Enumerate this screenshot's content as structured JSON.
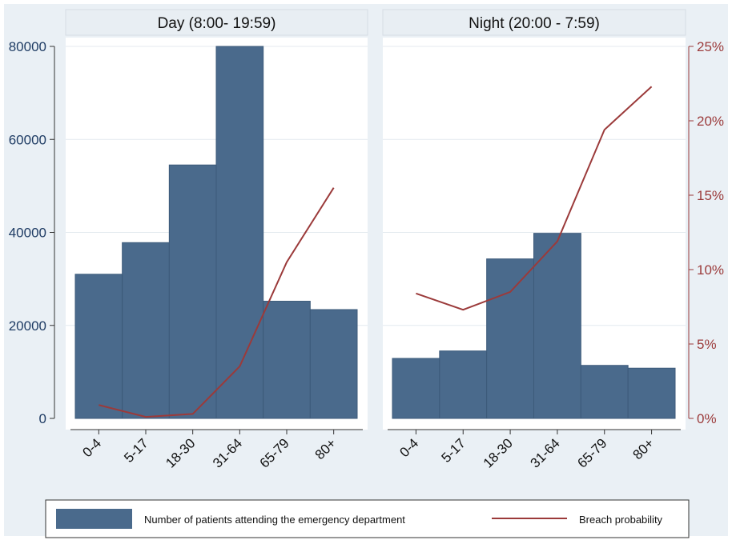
{
  "chart_data": {
    "type": "bar",
    "title": "",
    "categories": [
      "0-4",
      "5-17",
      "18-30",
      "31-64",
      "65-79",
      "80+"
    ],
    "panels": [
      {
        "title": "Day (8:00- 19:59)",
        "patients": [
          31000,
          37800,
          54500,
          80000,
          25200,
          23400
        ],
        "breach_probability": [
          0.009,
          0.001,
          0.003,
          0.035,
          0.105,
          0.155
        ]
      },
      {
        "title": "Night (20:00 - 7:59)",
        "patients": [
          12900,
          14500,
          34300,
          39800,
          11400,
          10800
        ],
        "breach_probability": [
          0.084,
          0.073,
          0.085,
          0.119,
          0.194,
          0.223
        ]
      }
    ],
    "left_axis": {
      "ticks": [
        0,
        20000,
        40000,
        60000,
        80000
      ],
      "tick_labels": [
        "0",
        "20000",
        "40000",
        "60000",
        "80000"
      ],
      "ylim": [
        0,
        80000
      ]
    },
    "right_axis": {
      "ticks": [
        0,
        0.05,
        0.1,
        0.15,
        0.2,
        0.25
      ],
      "tick_labels": [
        "0%",
        "5%",
        "10%",
        "15%",
        "20%",
        "25%"
      ],
      "ylim": [
        0,
        0.25
      ]
    },
    "legend": {
      "bar_label": "Number of patients attending the emergency department",
      "line_label": "Breach probability",
      "position": "bottom"
    },
    "grid": true
  },
  "colors": {
    "bar": "#4a6a8c",
    "bar_edge": "#3c5a7a",
    "line": "#9b3a3a",
    "panel_title_bg": "#e8eef3",
    "outer_bg": "#eaf0f5",
    "plot_bg": "#ffffff",
    "gridline": "#e4eaef"
  }
}
